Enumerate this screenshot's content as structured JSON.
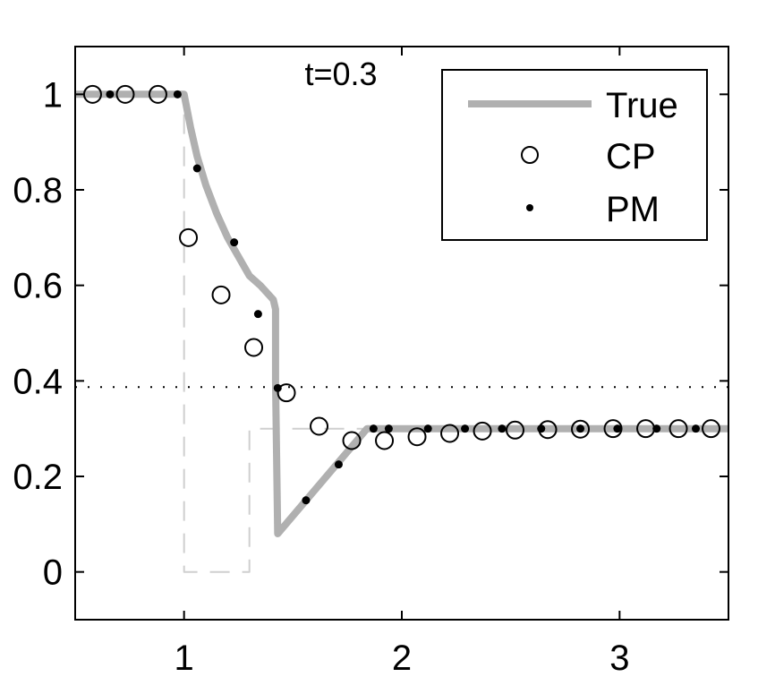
{
  "chart_data": {
    "type": "line",
    "title": "t=0.3",
    "xlabel": "",
    "ylabel": "",
    "xlim": [
      0.5,
      3.5
    ],
    "ylim": [
      -0.1,
      1.1
    ],
    "x_ticks": [
      1,
      2,
      3
    ],
    "x_tick_labels": [
      "1",
      "2",
      "3"
    ],
    "y_ticks": [
      0,
      0.2,
      0.4,
      0.6,
      0.8,
      1
    ],
    "y_tick_labels": [
      "0",
      "0.2",
      "0.4",
      "0.6",
      "0.8",
      "1"
    ],
    "grid": false,
    "legend": {
      "position": "top-right",
      "entries": [
        "True",
        "CP",
        "PM"
      ]
    },
    "series": [
      {
        "name": "True",
        "style": "thick-line",
        "color": "#b0b0b0",
        "x": [
          0.5,
          1.0,
          1.03,
          1.06,
          1.1,
          1.15,
          1.2,
          1.25,
          1.3,
          1.35,
          1.41,
          1.42,
          1.42,
          1.43,
          1.84,
          3.5
        ],
        "y": [
          1.0,
          1.0,
          0.93,
          0.87,
          0.81,
          0.75,
          0.7,
          0.66,
          0.62,
          0.6,
          0.57,
          0.55,
          0.4,
          0.08,
          0.3,
          0.3
        ]
      },
      {
        "name": "CP",
        "style": "open-circle",
        "color": "#000000",
        "x": [
          0.58,
          0.73,
          0.88,
          1.02,
          1.17,
          1.32,
          1.47,
          1.62,
          1.77,
          1.92,
          2.07,
          2.22,
          2.37,
          2.52,
          2.67,
          2.82,
          2.97,
          3.12,
          3.27,
          3.42
        ],
        "y": [
          1.0,
          1.0,
          1.0,
          0.7,
          0.58,
          0.47,
          0.375,
          0.305,
          0.275,
          0.275,
          0.283,
          0.29,
          0.295,
          0.297,
          0.298,
          0.299,
          0.3,
          0.3,
          0.3,
          0.3
        ]
      },
      {
        "name": "PM",
        "style": "dot",
        "color": "#000000",
        "x": [
          0.66,
          0.97,
          1.06,
          1.23,
          1.34,
          1.43,
          1.56,
          1.71,
          1.87,
          1.94,
          2.12,
          2.29,
          2.46,
          2.64,
          2.82,
          2.99,
          3.17,
          3.35
        ],
        "y": [
          1.0,
          1.0,
          0.845,
          0.69,
          0.54,
          0.385,
          0.15,
          0.225,
          0.3,
          0.3,
          0.3,
          0.3,
          0.3,
          0.3,
          0.3,
          0.3,
          0.3,
          0.3
        ]
      },
      {
        "name": "",
        "style": "light-dashed",
        "color": "#cfcfcf",
        "x": [
          0.5,
          1.0,
          1.0,
          1.3,
          1.3,
          3.5
        ],
        "y": [
          1.0,
          1.0,
          0.0,
          0.0,
          0.3,
          0.3
        ]
      },
      {
        "name": "",
        "style": "dotted",
        "color": "#000000",
        "x": [
          0.5,
          3.5
        ],
        "y": [
          0.387,
          0.387
        ]
      }
    ]
  }
}
